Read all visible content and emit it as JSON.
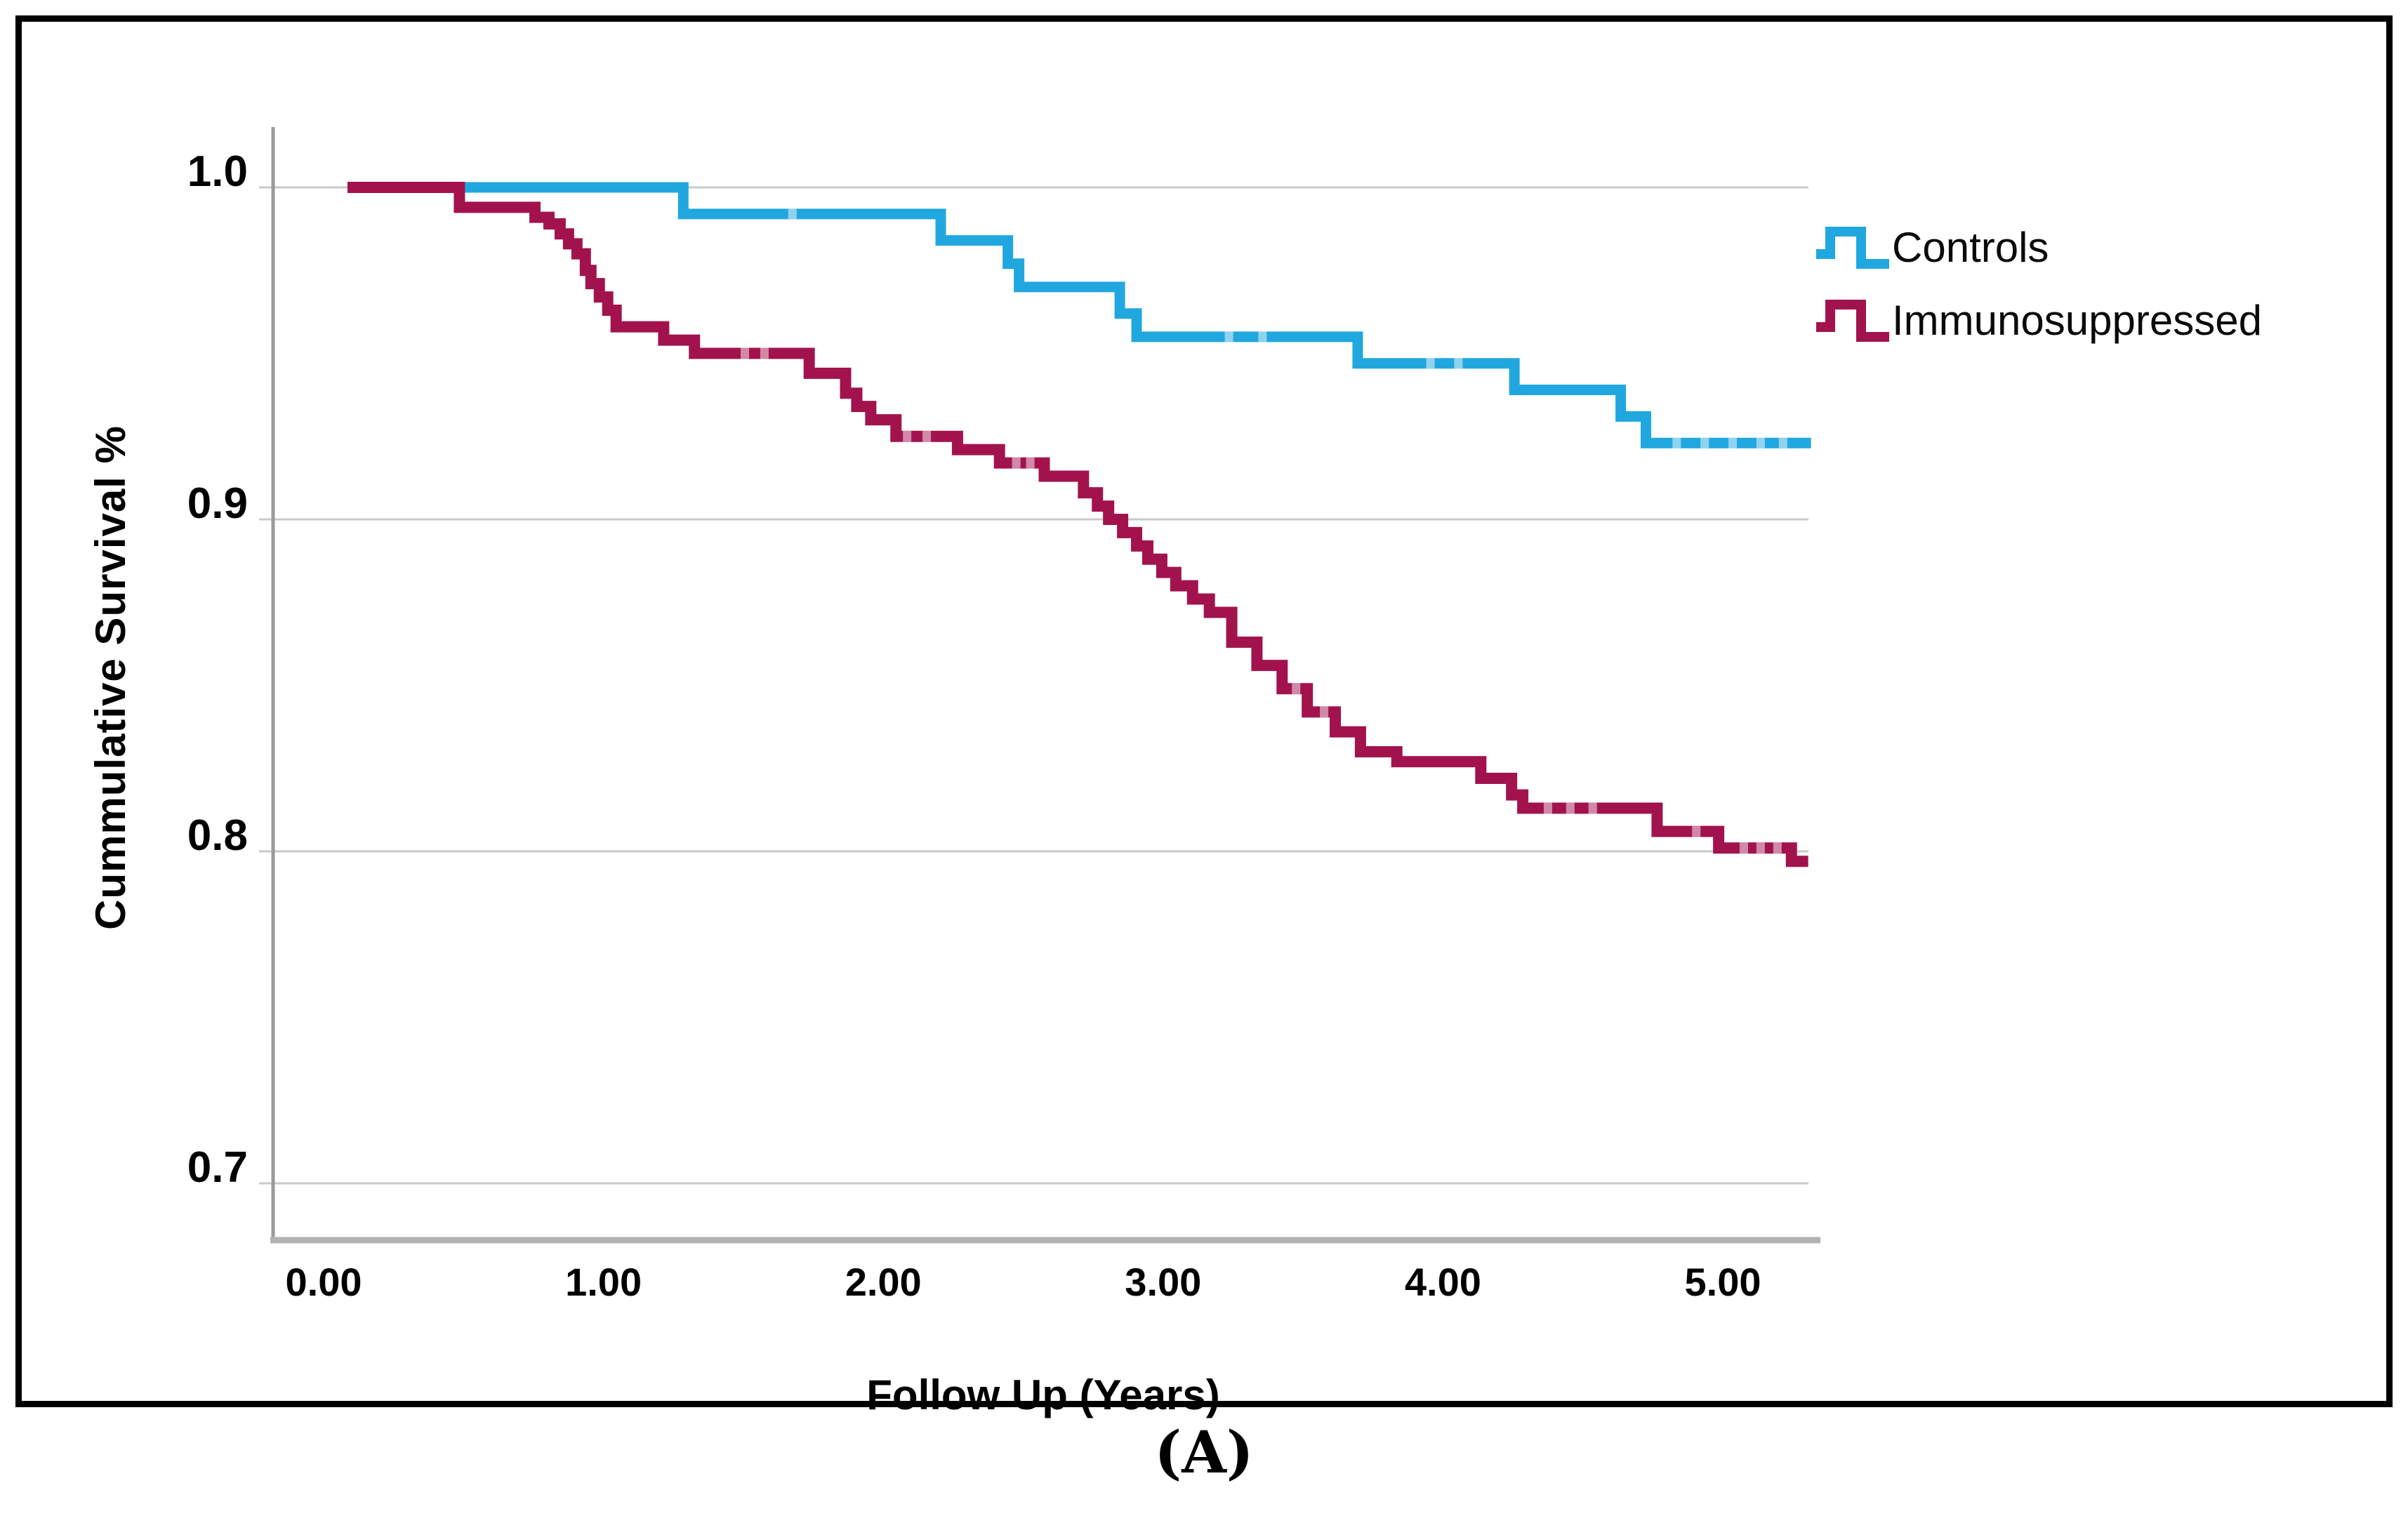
{
  "figure": {
    "caption": "(A)"
  },
  "chart_data": {
    "type": "line",
    "subtype": "kaplan-meier-step",
    "title": "",
    "xlabel": "Follow Up (Years)",
    "ylabel": "Cummulative Survival %",
    "x_tick_labels": [
      "0.00",
      "1.00",
      "2.00",
      "3.00",
      "4.00",
      "5.00"
    ],
    "x_tick_values": [
      0,
      1,
      2,
      3,
      4,
      5
    ],
    "y_tick_labels": [
      "1.0",
      "0.9",
      "0.8",
      "0.7"
    ],
    "y_tick_values": [
      1.0,
      0.9,
      0.8,
      0.7
    ],
    "xlim": [
      -0.24,
      5.35
    ],
    "ylim": [
      0.685,
      1.018
    ],
    "grid": "horizontal-only",
    "legend_position": "top-right-outside",
    "colors": {
      "controls": "#21A7DF",
      "immunosuppressed": "#A2134E",
      "gridline": "#c9c9c9",
      "y_axis_line": "#9b9b9b",
      "x_axis_line": "#b2b2b2",
      "frame_border": "#000000"
    },
    "series": [
      {
        "name": "Controls",
        "color": "#21A7DF",
        "line_width": 15,
        "end_t": 5.26,
        "steps": [
          [
            0.05,
            1.0
          ],
          [
            1.23,
            0.992
          ],
          [
            2.15,
            0.984
          ],
          [
            2.39,
            0.977
          ],
          [
            2.43,
            0.97
          ],
          [
            2.79,
            0.962
          ],
          [
            2.85,
            0.955
          ],
          [
            3.64,
            0.947
          ],
          [
            4.2,
            0.939
          ],
          [
            4.58,
            0.931
          ],
          [
            4.67,
            0.923
          ]
        ],
        "censor_t": [
          1.62,
          3.18,
          3.3,
          3.9,
          4.0,
          4.78,
          4.88,
          4.98,
          5.08,
          5.16
        ]
      },
      {
        "name": "Immunosuppressed",
        "color": "#A2134E",
        "line_width": 16,
        "end_t": 5.25,
        "steps": [
          [
            0.03,
            1.0
          ],
          [
            0.43,
            0.994
          ],
          [
            0.7,
            0.991
          ],
          [
            0.75,
            0.989
          ],
          [
            0.79,
            0.986
          ],
          [
            0.82,
            0.983
          ],
          [
            0.85,
            0.98
          ],
          [
            0.88,
            0.975
          ],
          [
            0.9,
            0.971
          ],
          [
            0.93,
            0.967
          ],
          [
            0.96,
            0.963
          ],
          [
            0.99,
            0.958
          ],
          [
            1.16,
            0.954
          ],
          [
            1.27,
            0.95
          ],
          [
            1.68,
            0.944
          ],
          [
            1.81,
            0.938
          ],
          [
            1.85,
            0.934
          ],
          [
            1.9,
            0.93
          ],
          [
            1.99,
            0.925
          ],
          [
            2.21,
            0.921
          ],
          [
            2.36,
            0.917
          ],
          [
            2.52,
            0.913
          ],
          [
            2.66,
            0.908
          ],
          [
            2.71,
            0.904
          ],
          [
            2.75,
            0.9
          ],
          [
            2.8,
            0.896
          ],
          [
            2.85,
            0.892
          ],
          [
            2.89,
            0.888
          ],
          [
            2.94,
            0.884
          ],
          [
            2.99,
            0.88
          ],
          [
            3.05,
            0.876
          ],
          [
            3.11,
            0.872
          ],
          [
            3.19,
            0.863
          ],
          [
            3.28,
            0.856
          ],
          [
            3.37,
            0.849
          ],
          [
            3.46,
            0.842
          ],
          [
            3.56,
            0.836
          ],
          [
            3.65,
            0.83
          ],
          [
            3.78,
            0.827
          ],
          [
            4.08,
            0.822
          ],
          [
            4.19,
            0.817
          ],
          [
            4.23,
            0.813
          ],
          [
            4.71,
            0.806
          ],
          [
            4.93,
            0.801
          ],
          [
            5.19,
            0.797
          ]
        ],
        "censor_t": [
          1.45,
          1.52,
          2.03,
          2.1,
          2.42,
          2.47,
          3.42,
          3.52,
          4.32,
          4.4,
          4.48,
          4.85,
          5.02,
          5.08,
          5.14
        ]
      }
    ]
  }
}
